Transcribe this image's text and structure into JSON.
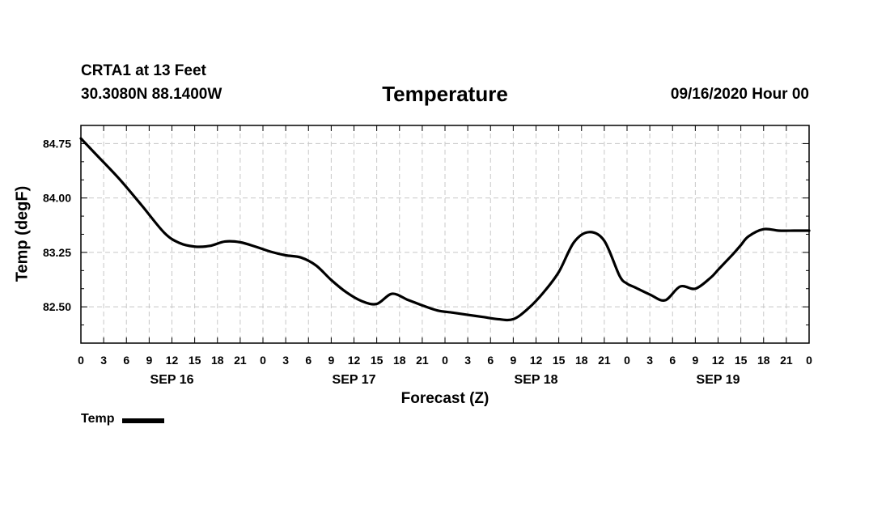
{
  "header": {
    "station": "CRTA1 at 13 Feet",
    "coords": "30.3080N 88.1400W",
    "title": "Temperature",
    "runtime": "09/16/2020 Hour 00"
  },
  "legend": {
    "label": "Temp"
  },
  "chart_data": {
    "type": "line",
    "title": "Temperature",
    "xlabel": "Forecast (Z)",
    "ylabel": "Temp (degF)",
    "xlim": [
      0,
      96
    ],
    "ylim": [
      82.0,
      85.0
    ],
    "yticks": [
      82.5,
      83.25,
      84.0,
      84.75
    ],
    "ytick_labels": [
      "82.50",
      "83.25",
      "84.00",
      "84.75"
    ],
    "xtick_hours": [
      0,
      3,
      6,
      9,
      12,
      15,
      18,
      21,
      24,
      27,
      30,
      33,
      36,
      39,
      42,
      45,
      48,
      51,
      54,
      57,
      60,
      63,
      66,
      69,
      72,
      75,
      78,
      81,
      84,
      87,
      90,
      93,
      96
    ],
    "xtick_labels": [
      "0",
      "3",
      "6",
      "9",
      "12",
      "15",
      "18",
      "21",
      "0",
      "3",
      "6",
      "9",
      "12",
      "15",
      "18",
      "21",
      "0",
      "3",
      "6",
      "9",
      "12",
      "15",
      "18",
      "21",
      "0",
      "3",
      "6",
      "9",
      "12",
      "15",
      "18",
      "21",
      "0"
    ],
    "date_labels": [
      {
        "hour": 12,
        "label": "SEP 16"
      },
      {
        "hour": 36,
        "label": "SEP 17"
      },
      {
        "hour": 60,
        "label": "SEP 18"
      },
      {
        "hour": 84,
        "label": "SEP 19"
      }
    ],
    "grid": true,
    "series": [
      {
        "name": "Temp",
        "color": "#000000",
        "x": [
          0,
          2,
          5,
          8,
          11,
          13,
          15,
          17,
          19,
          21,
          23,
          25,
          27,
          29,
          31,
          33,
          35,
          37,
          39,
          41,
          43,
          44,
          45,
          47,
          49,
          51,
          53,
          55,
          57,
          59,
          61,
          63,
          65,
          67,
          69,
          71,
          72,
          73,
          75,
          77,
          79,
          81,
          83,
          84,
          85,
          86,
          87,
          88,
          90,
          92,
          94,
          95,
          96
        ],
        "y": [
          84.82,
          84.6,
          84.27,
          83.9,
          83.52,
          83.38,
          83.33,
          83.34,
          83.4,
          83.39,
          83.33,
          83.26,
          83.21,
          83.18,
          83.07,
          82.87,
          82.7,
          82.58,
          82.54,
          82.68,
          82.6,
          82.56,
          82.52,
          82.45,
          82.42,
          82.39,
          82.36,
          82.33,
          82.33,
          82.48,
          82.7,
          82.98,
          83.39,
          83.53,
          83.41,
          82.93,
          82.82,
          82.77,
          82.67,
          82.59,
          82.78,
          82.75,
          82.9,
          83.01,
          83.12,
          83.23,
          83.35,
          83.47,
          83.57,
          83.55,
          83.55,
          83.55,
          83.55
        ]
      }
    ]
  }
}
